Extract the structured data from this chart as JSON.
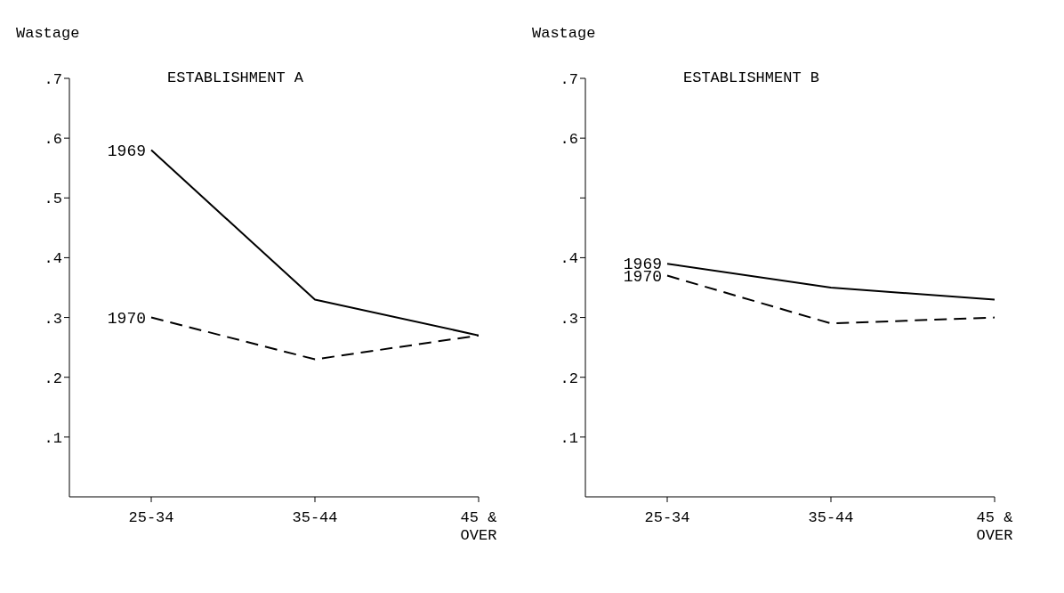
{
  "chart_data": [
    {
      "type": "line",
      "title": "ESTABLISHMENT A",
      "ylabel": "Wastage",
      "categories": [
        "25-34",
        "35-44",
        "45 &\nOVER"
      ],
      "series": [
        {
          "name": "1969",
          "color": "#000000",
          "line_style": "solid",
          "values": [
            0.58,
            0.33,
            0.27
          ]
        },
        {
          "name": "1970",
          "color": "#000000",
          "line_style": "dashed",
          "values": [
            0.3,
            0.23,
            0.27
          ]
        }
      ],
      "ylim": [
        0,
        0.7
      ],
      "yticks": [
        {
          "value": 0.1,
          "label": ".1"
        },
        {
          "value": 0.2,
          "label": ".2"
        },
        {
          "value": 0.3,
          "label": ".3"
        },
        {
          "value": 0.4,
          "label": ".4"
        },
        {
          "value": 0.5,
          "label": ".5"
        },
        {
          "value": 0.6,
          "label": ".6"
        },
        {
          "value": 0.7,
          "label": ".7"
        }
      ],
      "grid": false,
      "legend": false,
      "marker": "none"
    },
    {
      "type": "line",
      "title": "ESTABLISHMENT B",
      "ylabel": "Wastage",
      "categories": [
        "25-34",
        "35-44",
        "45 &\nOVER"
      ],
      "series": [
        {
          "name": "1969",
          "color": "#000000",
          "line_style": "solid",
          "values": [
            0.39,
            0.35,
            0.33
          ]
        },
        {
          "name": "1970",
          "color": "#000000",
          "line_style": "dashed",
          "values": [
            0.37,
            0.29,
            0.3
          ]
        }
      ],
      "ylim": [
        0,
        0.7
      ],
      "yticks": [
        {
          "value": 0.1,
          "label": ".1"
        },
        {
          "value": 0.2,
          "label": ".2"
        },
        {
          "value": 0.3,
          "label": ".3"
        },
        {
          "value": 0.4,
          "label": ".4"
        },
        {
          "value": 0.5,
          "label": null
        },
        {
          "value": 0.6,
          "label": ".6"
        },
        {
          "value": 0.7,
          "label": ".7"
        }
      ],
      "grid": false,
      "legend": false,
      "marker": "none"
    }
  ]
}
